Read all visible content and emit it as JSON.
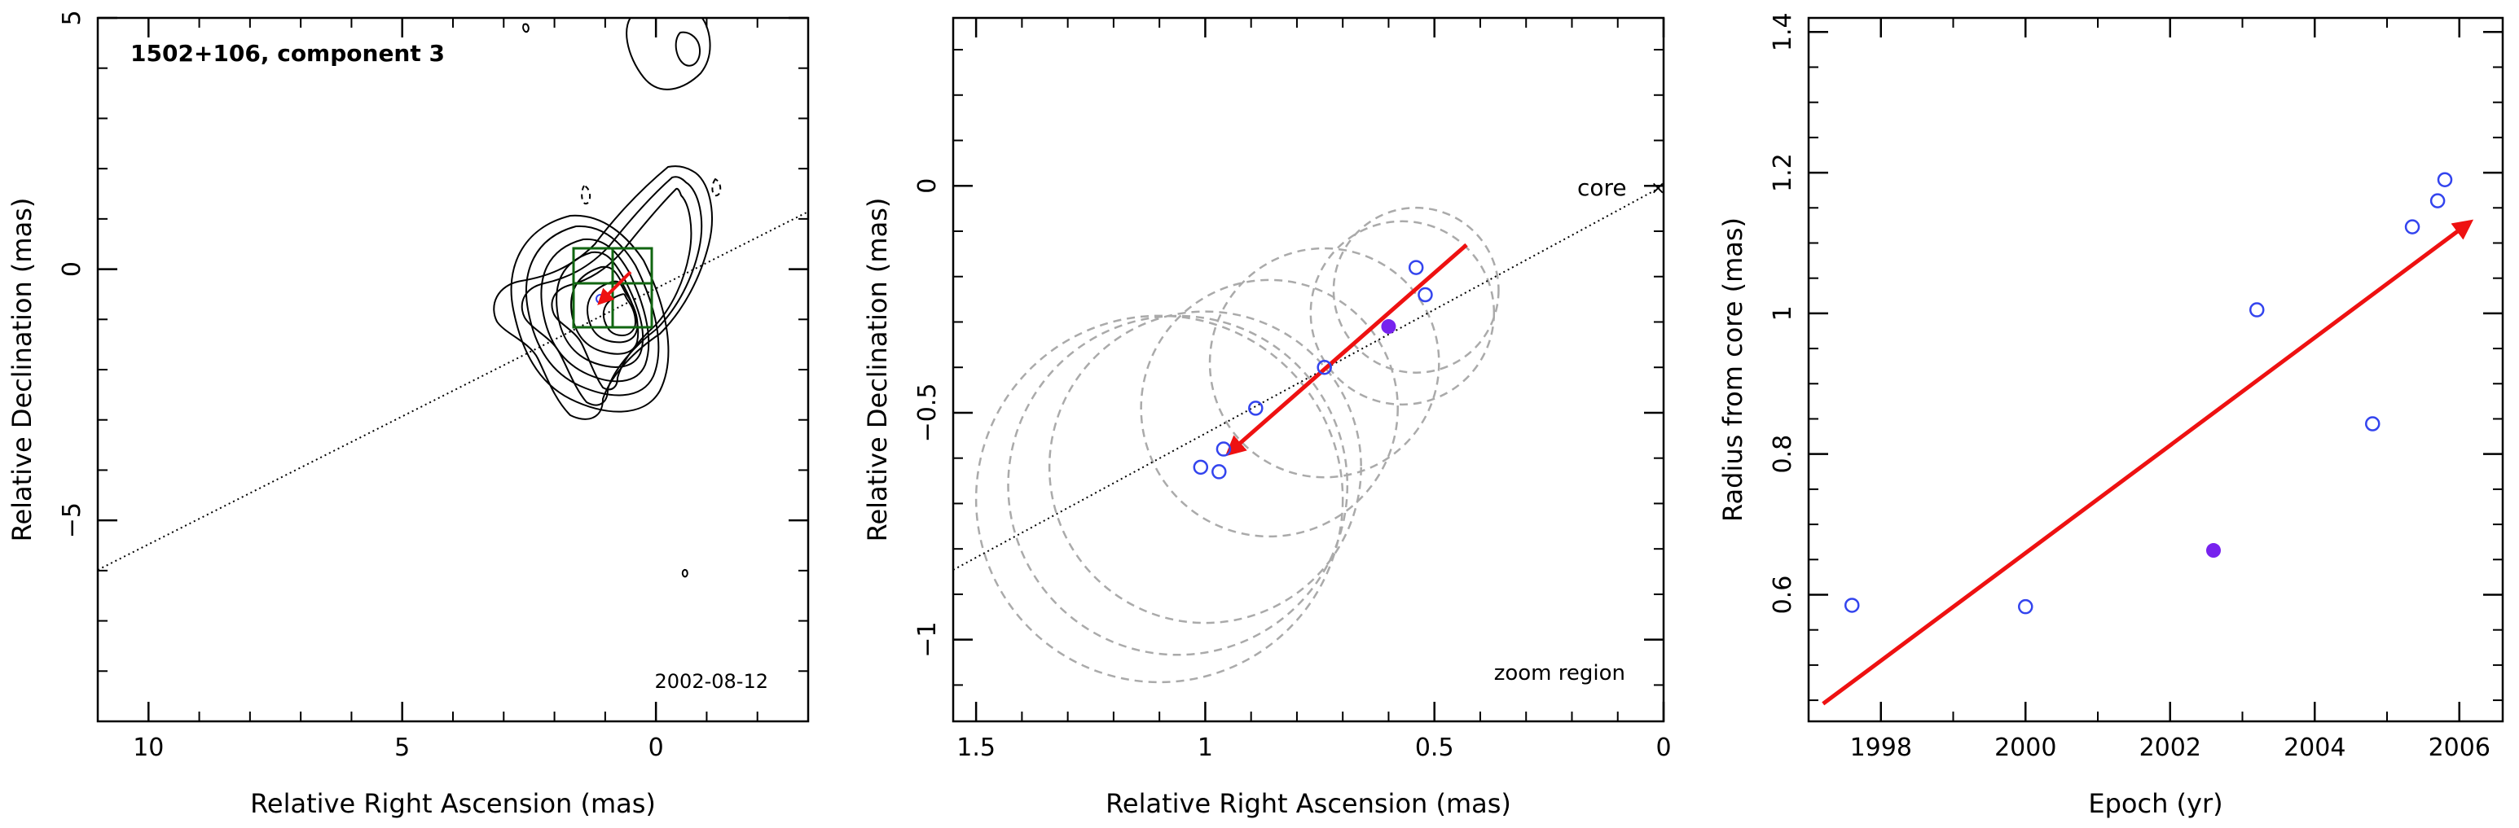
{
  "figure": {
    "panels": [
      {
        "id": "contour",
        "title": "1502+106, component 3",
        "epoch_label": "2002-08-12",
        "xlabel": "Relative Right Ascension (mas)",
        "ylabel": "Relative Declination (mas)",
        "xticks": [
          "10",
          "5",
          "0"
        ],
        "yticks": [
          "5",
          "0",
          "−5"
        ]
      },
      {
        "id": "zoom",
        "core_label": "core",
        "zoom_label": "zoom region",
        "xlabel": "Relative Right Ascension (mas)",
        "ylabel": "Relative Declination (mas)",
        "xticks": [
          "1.5",
          "1",
          "0.5",
          "0"
        ],
        "yticks": [
          "0",
          "−0.5",
          "−1"
        ]
      },
      {
        "id": "radius",
        "xlabel": "Epoch (yr)",
        "ylabel": "Radius from core (mas)",
        "xticks": [
          "1998",
          "2000",
          "2002",
          "2004",
          "2006"
        ],
        "yticks": [
          "0.6",
          "0.8",
          "1",
          "1.2",
          "1.4"
        ]
      }
    ],
    "colors": {
      "arrow": "#ee1111",
      "points": "#3344ee",
      "filled_point": "#7722ee",
      "zoom_box": "#116611",
      "circles": "#aaaaaa"
    }
  },
  "chart_data": [
    {
      "type": "scatter",
      "title": "1502+106, component 3",
      "annotation": "2002-08-12",
      "xlabel": "Relative Right Ascension (mas)",
      "ylabel": "Relative Declination (mas)",
      "xlim": [
        11,
        -3
      ],
      "ylim": [
        -9,
        5
      ],
      "contours": "radio intensity contours of the jet, core near (0, 0)",
      "component_position": {
        "x": 0.6,
        "y": -0.3
      },
      "core_direction_line": true
    },
    {
      "type": "scatter",
      "xlabel": "Relative Right Ascension (mas)",
      "ylabel": "Relative Declination (mas)",
      "xlim": [
        1.55,
        0
      ],
      "ylim": [
        -1.18,
        0.37
      ],
      "open_points": [
        {
          "x": 0.54,
          "y": -0.18
        },
        {
          "x": 0.52,
          "y": -0.24
        },
        {
          "x": 0.74,
          "y": -0.4
        },
        {
          "x": 0.89,
          "y": -0.49
        },
        {
          "x": 0.96,
          "y": -0.58
        },
        {
          "x": 0.97,
          "y": -0.63
        },
        {
          "x": 1.01,
          "y": -0.62
        }
      ],
      "filled_point": {
        "x": 0.6,
        "y": -0.31
      },
      "arrow": {
        "from": {
          "x": 0.43,
          "y": -0.13
        },
        "to": {
          "x": 0.95,
          "y": -0.59
        }
      },
      "circles": [
        {
          "x": 0.57,
          "y": -0.28,
          "r": 0.2
        },
        {
          "x": 0.54,
          "y": -0.23,
          "r": 0.18
        },
        {
          "x": 0.74,
          "y": -0.39,
          "r": 0.25
        },
        {
          "x": 0.86,
          "y": -0.49,
          "r": 0.28
        },
        {
          "x": 1.0,
          "y": -0.62,
          "r": 0.34
        },
        {
          "x": 1.06,
          "y": -0.66,
          "r": 0.37
        },
        {
          "x": 1.1,
          "y": -0.69,
          "r": 0.4
        }
      ]
    },
    {
      "type": "scatter",
      "xlabel": "Epoch (yr)",
      "ylabel": "Radius from core (mas)",
      "xlim": [
        1997,
        2006.6
      ],
      "ylim": [
        0.42,
        1.42
      ],
      "open_points": [
        {
          "x": 1997.6,
          "y": 0.585
        },
        {
          "x": 2000.0,
          "y": 0.583
        },
        {
          "x": 2003.2,
          "y": 1.005
        },
        {
          "x": 2004.8,
          "y": 0.843
        },
        {
          "x": 2005.35,
          "y": 1.123
        },
        {
          "x": 2005.7,
          "y": 1.16
        },
        {
          "x": 2005.8,
          "y": 1.19
        }
      ],
      "filled_point": {
        "x": 2002.6,
        "y": 0.663
      },
      "fit_arrow": {
        "from": {
          "x": 1997.2,
          "y": 0.445
        },
        "to": {
          "x": 2006.15,
          "y": 1.13
        }
      }
    }
  ]
}
